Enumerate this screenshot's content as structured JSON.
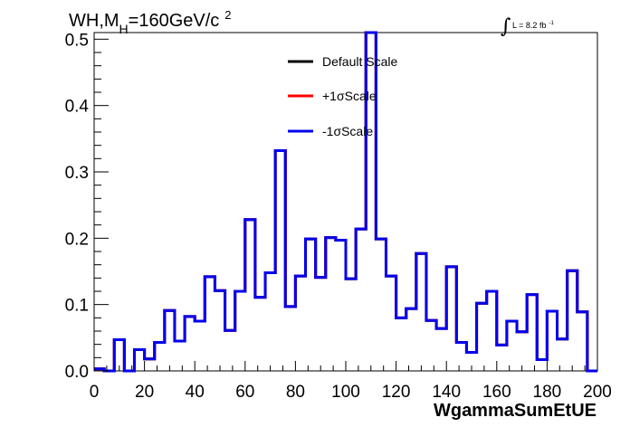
{
  "chart_data": {
    "type": "histogram",
    "title": {
      "main": "WH,M",
      "sub": "H",
      "rest": "=160GeV/c",
      "sup": "2"
    },
    "luminosity": {
      "label": "L = 8.2 fb",
      "sup": "-1"
    },
    "xlabel": "WgammaSumEtUE",
    "ylabel": "",
    "xlim": [
      0,
      200
    ],
    "ylim": [
      0,
      0.51
    ],
    "x_ticks": [
      "0",
      "20",
      "40",
      "60",
      "80",
      "100",
      "120",
      "140",
      "160",
      "180",
      "200"
    ],
    "y_ticks": [
      "0.0",
      "0.1",
      "0.2",
      "0.3",
      "0.4",
      "0.5"
    ],
    "bin_width": 4,
    "legend_position": "top-center",
    "series": [
      {
        "name": "Default Scale",
        "color": "#000000",
        "values": [
          0.003,
          0.0,
          0.047,
          0.0,
          0.032,
          0.018,
          0.043,
          0.091,
          0.045,
          0.082,
          0.075,
          0.142,
          0.121,
          0.061,
          0.12,
          0.228,
          0.111,
          0.148,
          0.332,
          0.097,
          0.143,
          0.199,
          0.141,
          0.201,
          0.197,
          0.139,
          0.214,
          0.51,
          0.199,
          0.143,
          0.08,
          0.094,
          0.177,
          0.076,
          0.064,
          0.157,
          0.043,
          0.028,
          0.102,
          0.12,
          0.039,
          0.075,
          0.059,
          0.115,
          0.017,
          0.09,
          0.048,
          0.151,
          0.089,
          0.0
        ]
      },
      {
        "name": "+1σScale",
        "color": "#ff0000",
        "values": [
          0.003,
          0.0,
          0.047,
          0.0,
          0.032,
          0.018,
          0.043,
          0.091,
          0.045,
          0.082,
          0.075,
          0.142,
          0.121,
          0.061,
          0.12,
          0.228,
          0.111,
          0.148,
          0.332,
          0.097,
          0.143,
          0.199,
          0.141,
          0.201,
          0.197,
          0.139,
          0.214,
          0.51,
          0.199,
          0.143,
          0.08,
          0.094,
          0.177,
          0.076,
          0.064,
          0.157,
          0.043,
          0.028,
          0.102,
          0.12,
          0.039,
          0.075,
          0.059,
          0.115,
          0.017,
          0.09,
          0.048,
          0.151,
          0.089,
          0.0
        ]
      },
      {
        "name": "-1σScale",
        "color": "#0000ee",
        "values": [
          0.003,
          0.0,
          0.047,
          0.0,
          0.032,
          0.018,
          0.043,
          0.091,
          0.045,
          0.082,
          0.075,
          0.142,
          0.121,
          0.061,
          0.12,
          0.228,
          0.111,
          0.148,
          0.332,
          0.097,
          0.143,
          0.199,
          0.141,
          0.201,
          0.197,
          0.139,
          0.214,
          0.51,
          0.199,
          0.143,
          0.08,
          0.094,
          0.177,
          0.076,
          0.064,
          0.157,
          0.043,
          0.028,
          0.102,
          0.12,
          0.039,
          0.075,
          0.059,
          0.115,
          0.017,
          0.09,
          0.048,
          0.151,
          0.089,
          0.0
        ]
      }
    ]
  }
}
